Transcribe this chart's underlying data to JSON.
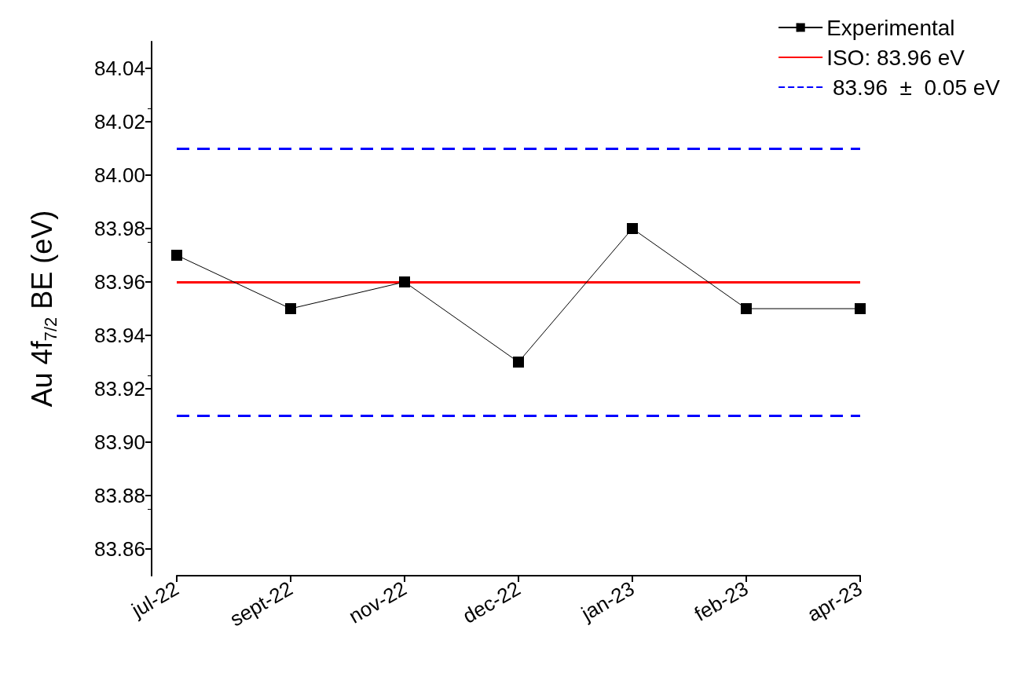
{
  "chart_data": {
    "type": "line",
    "ylabel": "Au 4f$_{7/2}$ BE (eV)",
    "categories": [
      "jul-22",
      "sept-22",
      "nov-22",
      "dec-22",
      "jan-23",
      "feb-23",
      "apr-23"
    ],
    "series": [
      {
        "name": "Experimental",
        "color": "#000000",
        "values": [
          83.97,
          83.95,
          83.96,
          83.93,
          83.98,
          83.95,
          83.95
        ]
      }
    ],
    "ylim": [
      83.85,
      84.05
    ],
    "yticks": [
      83.86,
      83.88,
      {
        "value": 83.9,
        "label": "83.90"
      },
      83.92,
      83.94,
      83.96,
      83.98,
      {
        "value": 84.0,
        "label": "84.00"
      },
      84.02,
      84.04
    ],
    "ref_lines": [
      {
        "axis": "y",
        "value": 83.96,
        "label": "ISO: 83.96 eV",
        "color": "#ff0000",
        "line_style": "solid"
      },
      {
        "axis": "y",
        "value": 84.01,
        "label": " 83.96  ±  0.05 eV",
        "color": "#0000ff",
        "line_style": "dashed"
      },
      {
        "axis": "y",
        "value": 83.91,
        "color": "#0000ff",
        "line_style": "dashed"
      }
    ],
    "marker": "square",
    "line_style": "solid",
    "grid": false,
    "legend": "top right"
  }
}
